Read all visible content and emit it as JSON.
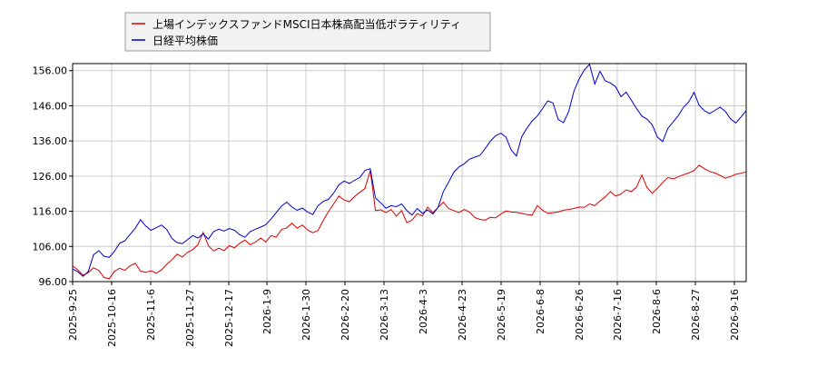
{
  "chart_data": {
    "type": "line",
    "ylim": [
      96,
      158
    ],
    "y_ticks": [
      "96.00",
      "106.00",
      "116.00",
      "126.00",
      "136.00",
      "146.00",
      "156.00"
    ],
    "x_ticks": [
      "2025-9-25",
      "2025-10-16",
      "2025-11-6",
      "2025-11-27",
      "2025-12-17",
      "2026-1-9",
      "2026-1-30",
      "2026-2-20",
      "2026-3-13",
      "2026-4-3",
      "2026-4-23",
      "2026-5-19",
      "2026-6-8",
      "2026-6-26",
      "2026-7-16",
      "2026-8-6",
      "2026-8-27",
      "2026-9-16"
    ],
    "grid": true,
    "legend_position": "top-left",
    "colors": {
      "series_1": "#dd0000",
      "series_2": "#0000cc",
      "grid": "#cccccc",
      "axis": "#000000"
    },
    "series": [
      {
        "name": "上場インデックスファンドMSCI日本株高配当低ボラティリティ",
        "color": "#dd0000",
        "points": [
          [
            0,
            100.5
          ],
          [
            1.2,
            99.3
          ],
          [
            2.4,
            97.8
          ],
          [
            3.6,
            98.6
          ],
          [
            4.8,
            99.9
          ],
          [
            6,
            99.2
          ],
          [
            7.2,
            97.2
          ],
          [
            8.4,
            96.8
          ],
          [
            9.6,
            98.9
          ],
          [
            10.8,
            99.8
          ],
          [
            12,
            99.2
          ],
          [
            13.2,
            100.5
          ],
          [
            14.4,
            101.2
          ],
          [
            15.6,
            99
          ],
          [
            16.8,
            98.6
          ],
          [
            18,
            99.1
          ],
          [
            19.2,
            98.4
          ],
          [
            20.4,
            99.3
          ],
          [
            21.6,
            100.9
          ],
          [
            22.8,
            102.2
          ],
          [
            24,
            103.8
          ],
          [
            25.2,
            103
          ],
          [
            26.4,
            104.3
          ],
          [
            27.6,
            105.1
          ],
          [
            28.8,
            106.5
          ],
          [
            30,
            110
          ],
          [
            31.2,
            106.2
          ],
          [
            32.4,
            104.7
          ],
          [
            33.6,
            105.5
          ],
          [
            34.8,
            104.8
          ],
          [
            36,
            106.2
          ],
          [
            37.2,
            105.6
          ],
          [
            38.4,
            106.9
          ],
          [
            39.6,
            107.8
          ],
          [
            40.8,
            106.5
          ],
          [
            42,
            107.2
          ],
          [
            43.2,
            108.4
          ],
          [
            44.4,
            107.3
          ],
          [
            45.6,
            109.1
          ],
          [
            46.8,
            108.6
          ],
          [
            48,
            110.8
          ],
          [
            49.2,
            111.3
          ],
          [
            50.4,
            112.6
          ],
          [
            51.6,
            111.2
          ],
          [
            52.8,
            112.1
          ],
          [
            54,
            110.7
          ],
          [
            55.2,
            109.9
          ],
          [
            56.4,
            110.5
          ],
          [
            57.6,
            113.4
          ],
          [
            58.8,
            115.9
          ],
          [
            60,
            118.1
          ],
          [
            61.2,
            120.3
          ],
          [
            62.4,
            119.2
          ],
          [
            63.6,
            118.7
          ],
          [
            64.8,
            120.2
          ],
          [
            66,
            121.4
          ],
          [
            67.2,
            122.5
          ],
          [
            68.4,
            127.6
          ],
          [
            69.6,
            116.2
          ],
          [
            70.8,
            116.4
          ],
          [
            72,
            115.6
          ],
          [
            73.2,
            116.5
          ],
          [
            74.4,
            114.6
          ],
          [
            75.6,
            116.2
          ],
          [
            76.8,
            112.8
          ],
          [
            78,
            113.5
          ],
          [
            79.2,
            115.3
          ],
          [
            80.4,
            114.7
          ],
          [
            81.6,
            117.2
          ],
          [
            82.8,
            115.6
          ],
          [
            84,
            117.1
          ],
          [
            85.2,
            118.6
          ],
          [
            86.4,
            116.8
          ],
          [
            87.6,
            116.2
          ],
          [
            88.8,
            115.6
          ],
          [
            90,
            116.5
          ],
          [
            91.2,
            115.8
          ],
          [
            92.4,
            114.2
          ],
          [
            93.6,
            113.7
          ],
          [
            94.8,
            113.5
          ],
          [
            96,
            114.3
          ],
          [
            97.2,
            114.1
          ],
          [
            98.4,
            115.2
          ],
          [
            99.6,
            116.1
          ],
          [
            100.8,
            115.8
          ],
          [
            102,
            115.7
          ],
          [
            103.2,
            115.4
          ],
          [
            104.4,
            115.1
          ],
          [
            105.6,
            114.9
          ],
          [
            106.8,
            117.6
          ],
          [
            108,
            116.3
          ],
          [
            109.2,
            115.4
          ],
          [
            110.4,
            115.6
          ],
          [
            111.6,
            115.8
          ],
          [
            112.8,
            116.3
          ],
          [
            114,
            116.5
          ],
          [
            115.2,
            116.8
          ],
          [
            116.4,
            117.2
          ],
          [
            117.6,
            117.1
          ],
          [
            118.8,
            118.1
          ],
          [
            120,
            117.6
          ],
          [
            121.2,
            118.9
          ],
          [
            122.4,
            120.1
          ],
          [
            123.6,
            121.6
          ],
          [
            124.8,
            120.3
          ],
          [
            126,
            120.9
          ],
          [
            127.2,
            122.1
          ],
          [
            128.4,
            121.6
          ],
          [
            129.6,
            122.9
          ],
          [
            130.8,
            126.3
          ],
          [
            132,
            122.8
          ],
          [
            133.2,
            121.1
          ],
          [
            134.4,
            122.5
          ],
          [
            135.6,
            124.2
          ],
          [
            136.8,
            125.6
          ],
          [
            138,
            125.2
          ],
          [
            139.2,
            125.8
          ],
          [
            140.4,
            126.4
          ],
          [
            141.6,
            126.9
          ],
          [
            142.8,
            127.6
          ],
          [
            144,
            129.1
          ],
          [
            145.2,
            128.1
          ],
          [
            146.4,
            127.3
          ],
          [
            147.6,
            126.9
          ],
          [
            148.8,
            126.2
          ],
          [
            150,
            125.4
          ],
          [
            151.2,
            125.9
          ],
          [
            152.4,
            126.5
          ],
          [
            153.6,
            126.8
          ],
          [
            154.8,
            127.2
          ]
        ]
      },
      {
        "name": "日経平均株価",
        "color": "#0000cc",
        "points": [
          [
            0,
            99.6
          ],
          [
            1.2,
            98.8
          ],
          [
            2.4,
            97.5
          ],
          [
            3.6,
            98.9
          ],
          [
            4.8,
            103.6
          ],
          [
            6,
            104.8
          ],
          [
            7.2,
            103.2
          ],
          [
            8.4,
            102.9
          ],
          [
            9.6,
            104.6
          ],
          [
            10.8,
            106.9
          ],
          [
            12,
            107.6
          ],
          [
            13.2,
            109.4
          ],
          [
            14.4,
            111.2
          ],
          [
            15.6,
            113.6
          ],
          [
            16.8,
            111.8
          ],
          [
            18,
            110.6
          ],
          [
            19.2,
            111.3
          ],
          [
            20.4,
            112.1
          ],
          [
            21.6,
            110.9
          ],
          [
            22.8,
            108.3
          ],
          [
            24,
            107.1
          ],
          [
            25.2,
            106.8
          ],
          [
            26.4,
            107.9
          ],
          [
            27.6,
            109.1
          ],
          [
            28.8,
            108.4
          ],
          [
            30,
            109.6
          ],
          [
            31.2,
            108.1
          ],
          [
            32.4,
            110.2
          ],
          [
            33.6,
            110.9
          ],
          [
            34.8,
            110.4
          ],
          [
            36,
            111.1
          ],
          [
            37.2,
            110.6
          ],
          [
            38.4,
            109.3
          ],
          [
            39.6,
            108.6
          ],
          [
            40.8,
            110.2
          ],
          [
            42,
            110.9
          ],
          [
            43.2,
            111.5
          ],
          [
            44.4,
            112.2
          ],
          [
            45.6,
            113.8
          ],
          [
            46.8,
            115.6
          ],
          [
            48,
            117.5
          ],
          [
            49.2,
            118.6
          ],
          [
            50.4,
            117.2
          ],
          [
            51.6,
            116.3
          ],
          [
            52.8,
            116.9
          ],
          [
            54,
            115.8
          ],
          [
            55.2,
            115.1
          ],
          [
            56.4,
            117.6
          ],
          [
            57.6,
            118.8
          ],
          [
            58.8,
            119.4
          ],
          [
            60,
            121.2
          ],
          [
            61.2,
            123.5
          ],
          [
            62.4,
            124.6
          ],
          [
            63.6,
            123.9
          ],
          [
            64.8,
            124.8
          ],
          [
            66,
            125.6
          ],
          [
            67.2,
            127.6
          ],
          [
            68.4,
            128.1
          ],
          [
            69.6,
            119.8
          ],
          [
            70.8,
            118.4
          ],
          [
            72,
            116.9
          ],
          [
            73.2,
            117.6
          ],
          [
            74.4,
            117.3
          ],
          [
            75.6,
            118.1
          ],
          [
            76.8,
            116.2
          ],
          [
            78,
            114.9
          ],
          [
            79.2,
            116.8
          ],
          [
            80.4,
            115.4
          ],
          [
            81.6,
            116.4
          ],
          [
            82.8,
            115.2
          ],
          [
            84,
            117.1
          ],
          [
            85.2,
            121.6
          ],
          [
            86.4,
            124.2
          ],
          [
            87.6,
            127.1
          ],
          [
            88.8,
            128.6
          ],
          [
            90,
            129.5
          ],
          [
            91.2,
            130.8
          ],
          [
            92.4,
            131.4
          ],
          [
            93.6,
            131.9
          ],
          [
            94.8,
            133.8
          ],
          [
            96,
            135.9
          ],
          [
            97.2,
            137.5
          ],
          [
            98.4,
            138.2
          ],
          [
            99.6,
            137.1
          ],
          [
            100.8,
            133.4
          ],
          [
            102,
            131.7
          ],
          [
            103.2,
            137.2
          ],
          [
            104.4,
            139.6
          ],
          [
            105.6,
            141.7
          ],
          [
            106.8,
            143.1
          ],
          [
            108,
            145.2
          ],
          [
            109.2,
            147.4
          ],
          [
            110.4,
            146.8
          ],
          [
            111.6,
            142.1
          ],
          [
            112.8,
            141.2
          ],
          [
            114,
            144.3
          ],
          [
            115.2,
            150.1
          ],
          [
            116.4,
            153.6
          ],
          [
            117.6,
            156.2
          ],
          [
            118.8,
            157.8
          ],
          [
            120,
            152.2
          ],
          [
            121.2,
            155.8
          ],
          [
            122.4,
            153.1
          ],
          [
            123.6,
            152.5
          ],
          [
            124.8,
            151.4
          ],
          [
            126,
            148.6
          ],
          [
            127.2,
            149.9
          ],
          [
            128.4,
            147.6
          ],
          [
            129.6,
            145.2
          ],
          [
            130.8,
            143.1
          ],
          [
            132,
            142.2
          ],
          [
            133.2,
            140.6
          ],
          [
            134.4,
            137.1
          ],
          [
            135.6,
            135.8
          ],
          [
            136.8,
            139.6
          ],
          [
            138,
            141.4
          ],
          [
            139.2,
            143.2
          ],
          [
            140.4,
            145.6
          ],
          [
            141.6,
            147.1
          ],
          [
            142.8,
            149.8
          ],
          [
            144,
            146.1
          ],
          [
            145.2,
            144.6
          ],
          [
            146.4,
            143.8
          ],
          [
            147.6,
            144.7
          ],
          [
            148.8,
            145.6
          ],
          [
            150,
            144.4
          ],
          [
            151.2,
            142.3
          ],
          [
            152.4,
            141.1
          ],
          [
            153.6,
            142.8
          ],
          [
            154.8,
            144.6
          ]
        ]
      }
    ]
  }
}
